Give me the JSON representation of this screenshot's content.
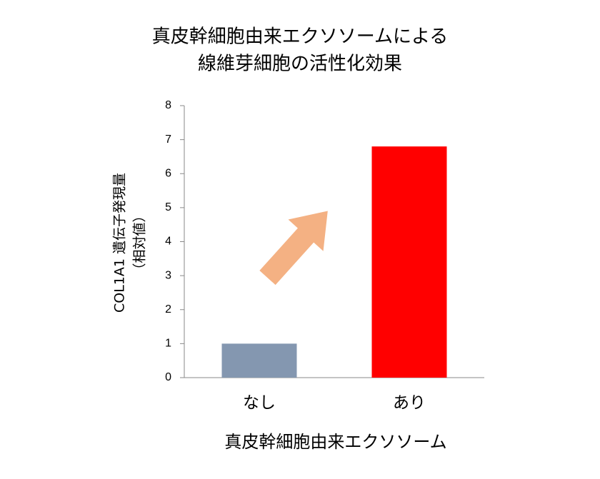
{
  "chart_data": {
    "type": "bar",
    "title": [
      "真皮幹細胞由来エクソソームによる",
      "線維芽細胞の活性化効果"
    ],
    "y_label": [
      "COL1A1 遺伝子発現量",
      "（相対値）"
    ],
    "x_label": "真皮幹細胞由来エクソソーム",
    "categories": [
      "なし",
      "あり"
    ],
    "values": [
      1,
      6.8
    ],
    "colors": [
      "#8497b0",
      "#ff0000"
    ],
    "ylim": [
      0,
      8
    ],
    "yticks": [
      0,
      1,
      2,
      3,
      4,
      5,
      6,
      7,
      8
    ],
    "grid": false
  }
}
